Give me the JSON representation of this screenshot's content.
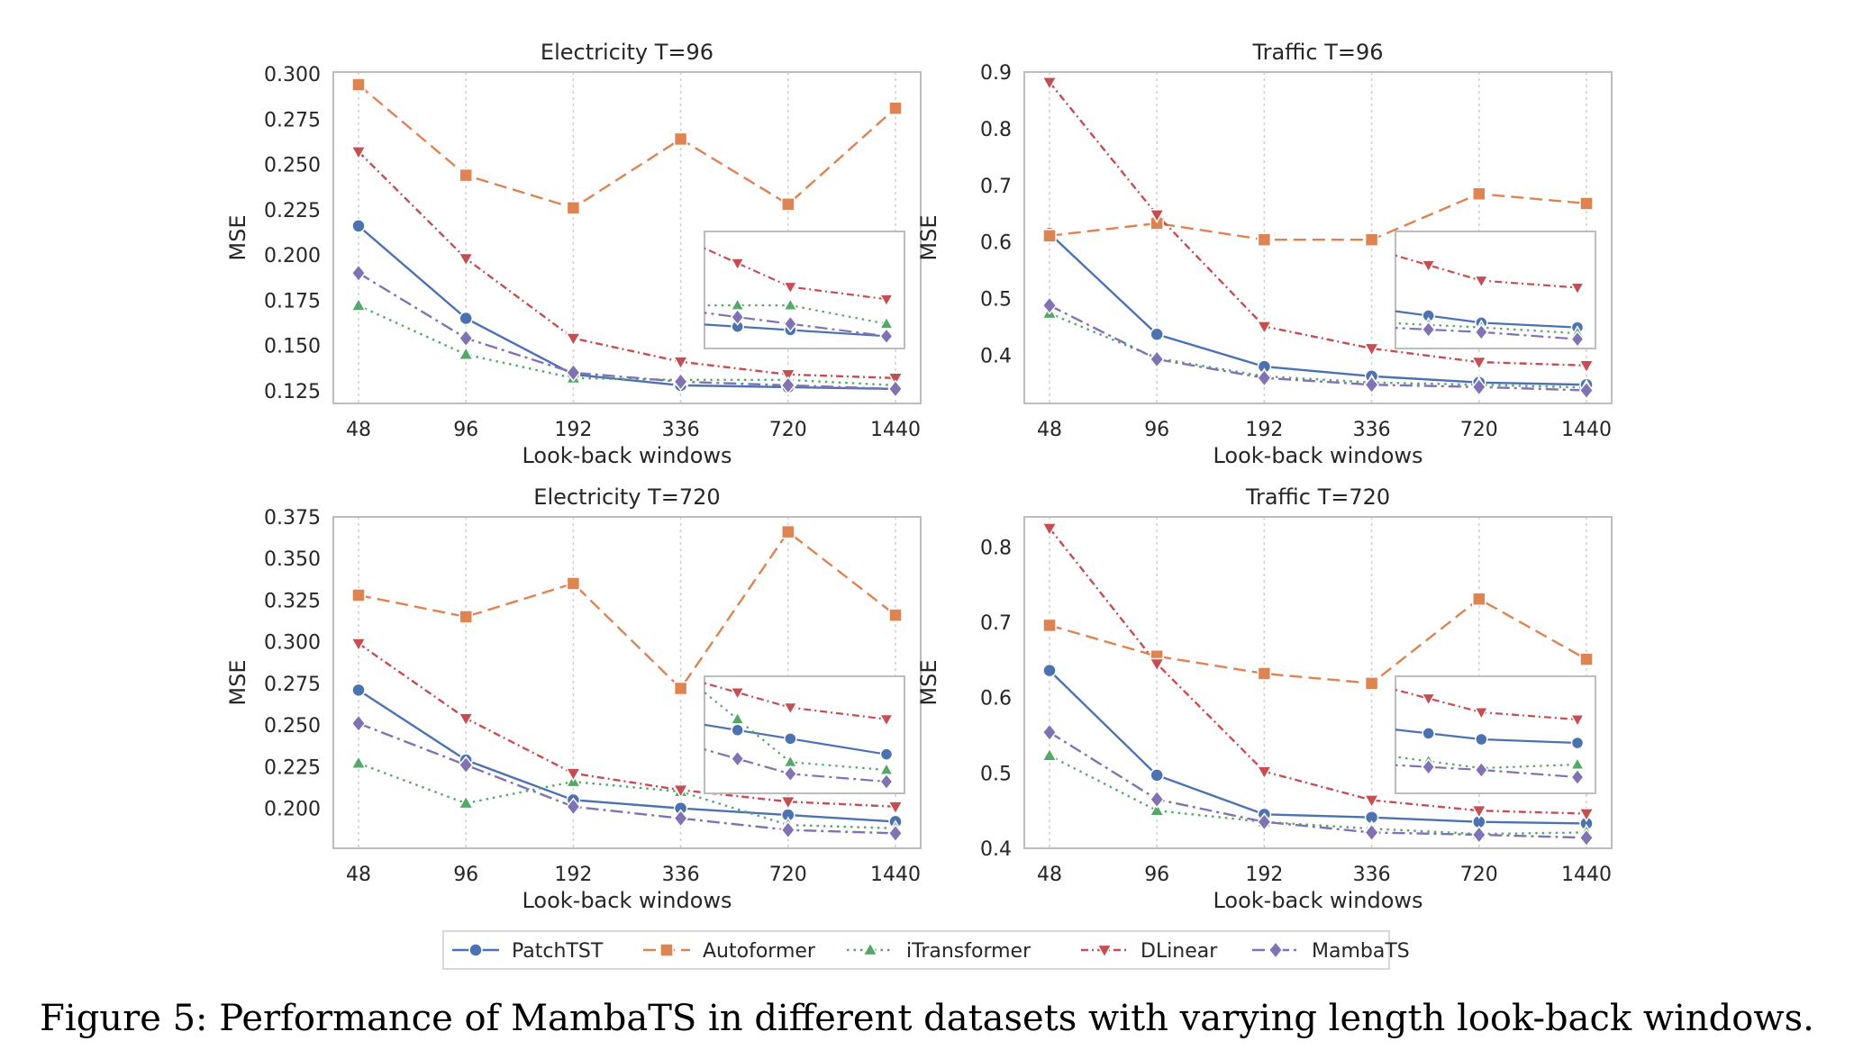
{
  "caption": "Figure 5: Performance of MambaTS in different datasets with varying length look-back windows.",
  "colors": {
    "PatchTST": "#4c72b0",
    "Autoformer": "#dd8452",
    "iTransformer": "#55a868",
    "DLinear": "#c44e52",
    "MambaTS": "#8172b3"
  },
  "legend": [
    "PatchTST",
    "Autoformer",
    "iTransformer",
    "DLinear",
    "MambaTS"
  ],
  "chart_data": [
    {
      "type": "line",
      "title": "Electricity T=96",
      "xlabel": "Look-back windows",
      "ylabel": "MSE",
      "categories": [
        "48",
        "96",
        "192",
        "336",
        "720",
        "1440"
      ],
      "yticks": [
        0.125,
        0.15,
        0.175,
        0.2,
        0.225,
        0.25,
        0.275,
        0.3
      ],
      "ytick_labels": [
        "0.125",
        "0.150",
        "0.175",
        "0.200",
        "0.225",
        "0.250",
        "0.275",
        "0.300"
      ],
      "ylim": [
        0.118,
        0.301
      ],
      "inset": {
        "x_range": [
          3.2,
          5
        ],
        "ylim": [
          0.124,
          0.143
        ]
      },
      "series": [
        {
          "name": "PatchTST",
          "values": [
            0.216,
            0.165,
            0.134,
            0.128,
            0.127,
            0.126
          ]
        },
        {
          "name": "Autoformer",
          "values": [
            0.294,
            0.244,
            0.226,
            0.264,
            0.228,
            0.281
          ]
        },
        {
          "name": "iTransformer",
          "values": [
            0.172,
            0.145,
            0.132,
            0.131,
            0.131,
            0.128
          ]
        },
        {
          "name": "DLinear",
          "values": [
            0.257,
            0.198,
            0.154,
            0.141,
            0.134,
            0.132
          ]
        },
        {
          "name": "MambaTS",
          "values": [
            0.19,
            0.154,
            0.135,
            0.13,
            0.128,
            0.126
          ]
        }
      ]
    },
    {
      "type": "line",
      "title": "Traffic T=96",
      "xlabel": "Look-back windows",
      "ylabel": "MSE",
      "categories": [
        "48",
        "96",
        "192",
        "336",
        "720",
        "1440"
      ],
      "yticks": [
        0.4,
        0.5,
        0.6,
        0.7,
        0.8,
        0.9
      ],
      "ytick_labels": [
        "0.4",
        "0.5",
        "0.6",
        "0.7",
        "0.8",
        "0.9"
      ],
      "ylim": [
        0.315,
        0.9
      ],
      "inset": {
        "x_range": [
          3.2,
          5
        ],
        "ylim": [
          0.33,
          0.43
        ]
      },
      "series": [
        {
          "name": "PatchTST",
          "values": [
            0.615,
            0.437,
            0.38,
            0.363,
            0.352,
            0.348
          ]
        },
        {
          "name": "Autoformer",
          "values": [
            0.611,
            0.633,
            0.604,
            0.604,
            0.685,
            0.668
          ]
        },
        {
          "name": "iTransformer",
          "values": [
            0.474,
            0.395,
            0.363,
            0.352,
            0.348,
            0.343
          ]
        },
        {
          "name": "DLinear",
          "values": [
            0.882,
            0.648,
            0.451,
            0.412,
            0.388,
            0.382
          ]
        },
        {
          "name": "MambaTS",
          "values": [
            0.488,
            0.393,
            0.36,
            0.348,
            0.344,
            0.338
          ]
        }
      ]
    },
    {
      "type": "line",
      "title": "Electricity T=720",
      "xlabel": "Look-back windows",
      "ylabel": "MSE",
      "categories": [
        "48",
        "96",
        "192",
        "336",
        "720",
        "1440"
      ],
      "yticks": [
        0.2,
        0.225,
        0.25,
        0.275,
        0.3,
        0.325,
        0.35,
        0.375
      ],
      "ytick_labels": [
        "0.200",
        "0.225",
        "0.250",
        "0.275",
        "0.300",
        "0.325",
        "0.350",
        "0.375"
      ],
      "ylim": [
        0.176,
        0.375
      ],
      "inset": {
        "x_range": [
          3.2,
          5
        ],
        "ylim": [
          0.182,
          0.212
        ]
      },
      "series": [
        {
          "name": "PatchTST",
          "values": [
            0.271,
            0.229,
            0.205,
            0.2,
            0.196,
            0.192
          ]
        },
        {
          "name": "Autoformer",
          "values": [
            0.328,
            0.315,
            0.335,
            0.272,
            0.366,
            0.316
          ]
        },
        {
          "name": "iTransformer",
          "values": [
            0.227,
            0.203,
            0.216,
            0.21,
            0.19,
            0.188
          ]
        },
        {
          "name": "DLinear",
          "values": [
            0.299,
            0.254,
            0.221,
            0.211,
            0.204,
            0.201
          ]
        },
        {
          "name": "MambaTS",
          "values": [
            0.251,
            0.226,
            0.201,
            0.194,
            0.187,
            0.185
          ]
        }
      ]
    },
    {
      "type": "line",
      "title": "Traffic T=720",
      "xlabel": "Look-back windows",
      "ylabel": "MSE",
      "categories": [
        "48",
        "96",
        "192",
        "336",
        "720",
        "1440"
      ],
      "yticks": [
        0.4,
        0.5,
        0.6,
        0.7,
        0.8
      ],
      "ytick_labels": [
        "0.4",
        "0.5",
        "0.6",
        "0.7",
        "0.8"
      ],
      "ylim": [
        0.4,
        0.84
      ],
      "inset": {
        "x_range": [
          3.2,
          5
        ],
        "ylim": [
          0.405,
          0.47
        ]
      },
      "series": [
        {
          "name": "PatchTST",
          "values": [
            0.636,
            0.497,
            0.445,
            0.441,
            0.435,
            0.433
          ]
        },
        {
          "name": "Autoformer",
          "values": [
            0.696,
            0.655,
            0.632,
            0.619,
            0.731,
            0.651
          ]
        },
        {
          "name": "iTransformer",
          "values": [
            0.523,
            0.45,
            0.435,
            0.426,
            0.419,
            0.421
          ]
        },
        {
          "name": "DLinear",
          "values": [
            0.825,
            0.645,
            0.502,
            0.464,
            0.45,
            0.446
          ]
        },
        {
          "name": "MambaTS",
          "values": [
            0.554,
            0.465,
            0.435,
            0.421,
            0.418,
            0.414
          ]
        }
      ]
    }
  ]
}
